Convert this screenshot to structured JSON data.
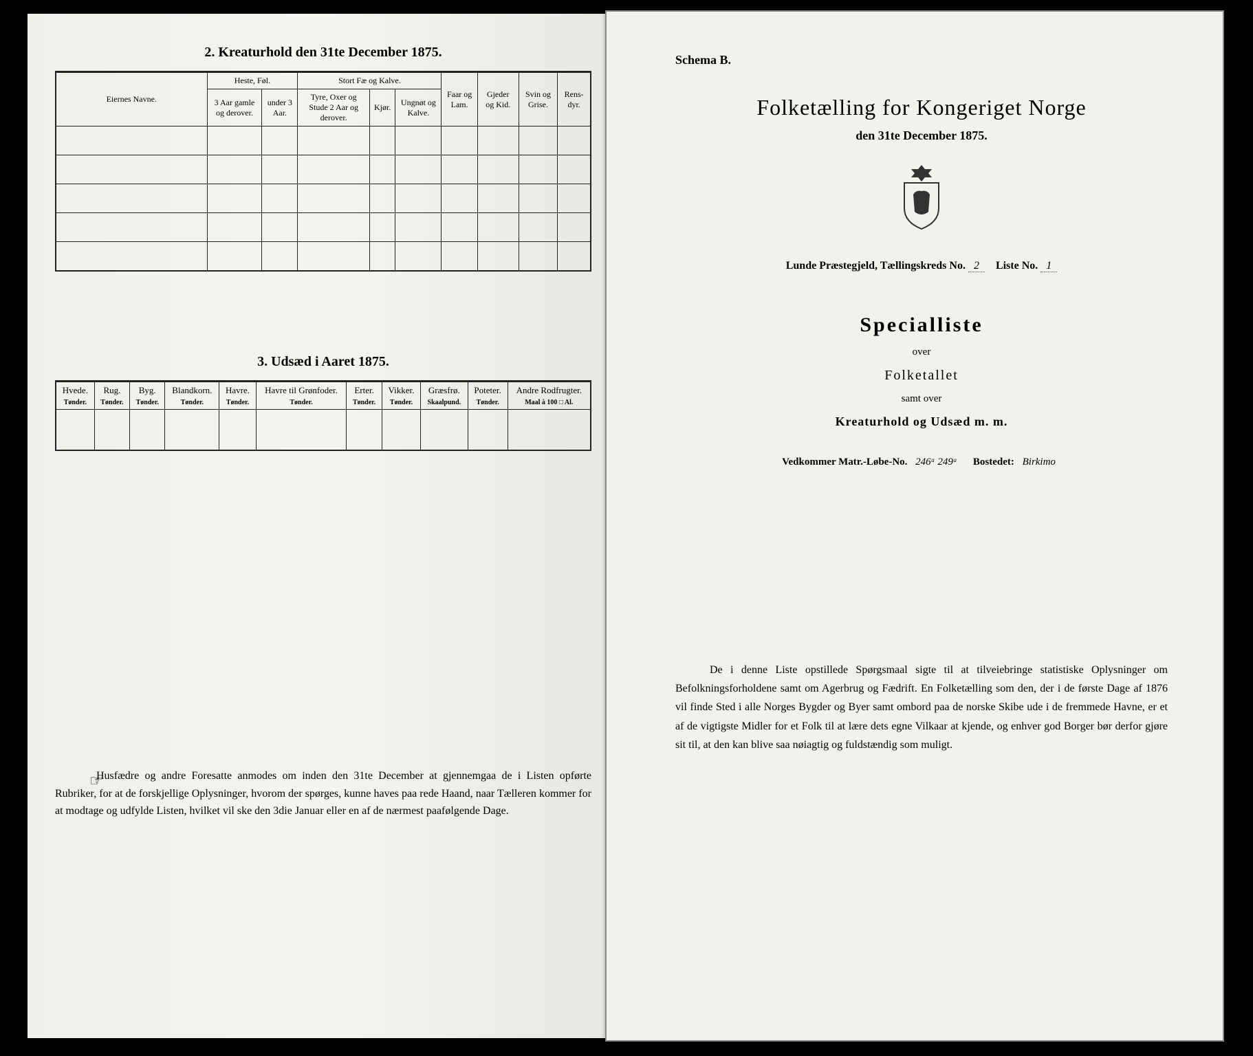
{
  "left": {
    "section2_title": "2. Kreaturhold den 31te December 1875.",
    "kreatur_headers": {
      "eierne": "Eiernes Navne.",
      "heste": "Heste, Føl.",
      "heste_sub1": "3 Aar gamle og derover.",
      "heste_sub2": "under 3 Aar.",
      "stort_fae": "Stort Fæ og Kalve.",
      "stort_sub1": "Tyre, Oxer og Stude 2 Aar og derover.",
      "stort_sub2": "Kjør.",
      "stort_sub3": "Ungnøt og Kalve.",
      "faar": "Faar og Lam.",
      "gjeder": "Gjeder og Kid.",
      "svin": "Svin og Grise.",
      "rens": "Rens-dyr."
    },
    "section3_title": "3. Udsæd i Aaret 1875.",
    "udsaed_cols": [
      {
        "h": "Hvede.",
        "s": "Tønder."
      },
      {
        "h": "Rug.",
        "s": "Tønder."
      },
      {
        "h": "Byg.",
        "s": "Tønder."
      },
      {
        "h": "Blandkorn.",
        "s": "Tønder."
      },
      {
        "h": "Havre.",
        "s": "Tønder."
      },
      {
        "h": "Havre til Grønfoder.",
        "s": "Tønder."
      },
      {
        "h": "Erter.",
        "s": "Tønder."
      },
      {
        "h": "Vikker.",
        "s": "Tønder."
      },
      {
        "h": "Græsfrø.",
        "s": "Skaalpund."
      },
      {
        "h": "Poteter.",
        "s": "Tønder."
      },
      {
        "h": "Andre Rodfrugter.",
        "s": "Maal à 100 □ Al."
      }
    ],
    "footnote": "Husfædre og andre Foresatte anmodes om inden den 31te December at gjennemgaa de i Listen opførte Rubriker, for at de forskjellige Oplysninger, hvorom der spørges, kunne haves paa rede Haand, naar Tælleren kommer for at modtage og udfylde Listen, hvilket vil ske den 3die Januar eller en af de nærmest paafølgende Dage."
  },
  "right": {
    "schema": "Schema B.",
    "main_title": "Folketælling for Kongeriget Norge",
    "main_subtitle": "den 31te December 1875.",
    "county_prefix": "Lunde Præstegjeld, Tællingskreds No.",
    "county_no": "2",
    "liste_label": "Liste No.",
    "liste_no": "1",
    "specialliste": "Specialliste",
    "over": "over",
    "folketallet": "Folketallet",
    "samt_over": "samt over",
    "kreatur_udsaed": "Kreaturhold og Udsæd m. m.",
    "matr_prefix": "Vedkommer Matr.-Løbe-No.",
    "matr_no": "246ᵃ 249ᵃ",
    "bostedet_label": "Bostedet:",
    "bostedet": "Birkimo",
    "footnote": "De i denne Liste opstillede Spørgsmaal sigte til at tilveiebringe statistiske Oplysninger om Befolkningsforholdene samt om Agerbrug og Fædrift. En Folketælling som den, der i de første Dage af 1876 vil finde Sted i alle Norges Bygder og Byer samt ombord paa de norske Skibe ude i de fremmede Havne, er et af de vigtigste Midler for et Folk til at lære dets egne Vilkaar at kjende, og enhver god Borger bør derfor gjøre sit til, at den kan blive saa nøiagtig og fuldstændig som muligt."
  }
}
